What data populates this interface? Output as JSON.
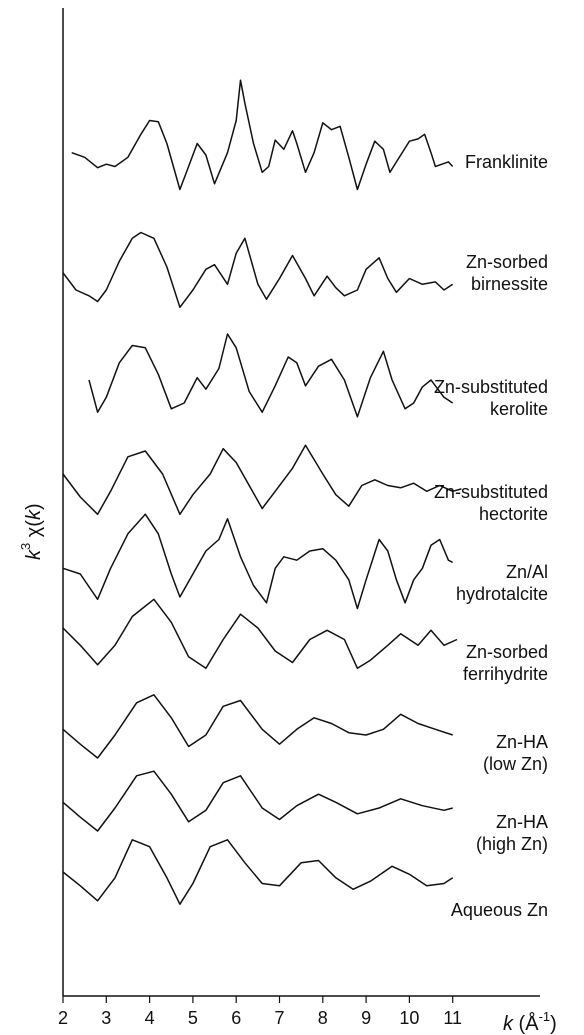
{
  "chart_data": {
    "type": "line",
    "title": "",
    "xlabel_parts": {
      "k": "k",
      "open": " (Å",
      "exp": "-1",
      "close": ")"
    },
    "ylabel_parts": {
      "k": "k",
      "exp": "3",
      "chi": " χ(",
      "kk": "k",
      "close": ")"
    },
    "xlim": [
      2,
      11.5
    ],
    "x_ticks": [
      2,
      3,
      4,
      5,
      6,
      7,
      8,
      9,
      10,
      11
    ],
    "grid": false,
    "legend": "none",
    "series": [
      {
        "name": "Franklinite",
        "label_lines": [
          "Franklinite"
        ],
        "points": [
          [
            2.2,
            0.72
          ],
          [
            2.5,
            0.68
          ],
          [
            2.8,
            0.59
          ],
          [
            3.0,
            0.62
          ],
          [
            3.2,
            0.6
          ],
          [
            3.5,
            0.68
          ],
          [
            3.8,
            0.88
          ],
          [
            4.0,
            1.0
          ],
          [
            4.2,
            0.99
          ],
          [
            4.4,
            0.8
          ],
          [
            4.7,
            0.4
          ],
          [
            4.9,
            0.6
          ],
          [
            5.1,
            0.8
          ],
          [
            5.3,
            0.7
          ],
          [
            5.5,
            0.45
          ],
          [
            5.8,
            0.72
          ],
          [
            6.0,
            1.0
          ],
          [
            6.1,
            1.35
          ],
          [
            6.2,
            1.15
          ],
          [
            6.4,
            0.8
          ],
          [
            6.6,
            0.55
          ],
          [
            6.75,
            0.6
          ],
          [
            6.9,
            0.83
          ],
          [
            7.1,
            0.75
          ],
          [
            7.3,
            0.91
          ],
          [
            7.4,
            0.8
          ],
          [
            7.6,
            0.55
          ],
          [
            7.8,
            0.72
          ],
          [
            8.0,
            0.98
          ],
          [
            8.2,
            0.92
          ],
          [
            8.4,
            0.95
          ],
          [
            8.6,
            0.68
          ],
          [
            8.8,
            0.4
          ],
          [
            9.0,
            0.62
          ],
          [
            9.2,
            0.82
          ],
          [
            9.4,
            0.75
          ],
          [
            9.55,
            0.55
          ],
          [
            9.7,
            0.64
          ],
          [
            9.9,
            0.76
          ],
          [
            10.0,
            0.82
          ],
          [
            10.2,
            0.84
          ],
          [
            10.35,
            0.88
          ],
          [
            10.5,
            0.72
          ],
          [
            10.6,
            0.6
          ],
          [
            10.75,
            0.62
          ],
          [
            10.9,
            0.64
          ],
          [
            11.0,
            0.6
          ]
        ]
      },
      {
        "name": "Zn-sorbed birnessite",
        "label_lines": [
          "Zn-sorbed",
          "birnessite"
        ],
        "points": [
          [
            2.0,
            0.65
          ],
          [
            2.3,
            0.5
          ],
          [
            2.6,
            0.45
          ],
          [
            2.8,
            0.4
          ],
          [
            3.0,
            0.5
          ],
          [
            3.3,
            0.75
          ],
          [
            3.6,
            0.95
          ],
          [
            3.8,
            1.0
          ],
          [
            4.1,
            0.95
          ],
          [
            4.4,
            0.7
          ],
          [
            4.7,
            0.35
          ],
          [
            5.0,
            0.5
          ],
          [
            5.3,
            0.68
          ],
          [
            5.5,
            0.72
          ],
          [
            5.8,
            0.55
          ],
          [
            6.0,
            0.82
          ],
          [
            6.2,
            0.95
          ],
          [
            6.5,
            0.55
          ],
          [
            6.7,
            0.42
          ],
          [
            7.0,
            0.6
          ],
          [
            7.3,
            0.8
          ],
          [
            7.6,
            0.6
          ],
          [
            7.8,
            0.45
          ],
          [
            8.1,
            0.62
          ],
          [
            8.3,
            0.52
          ],
          [
            8.5,
            0.45
          ],
          [
            8.8,
            0.5
          ],
          [
            9.0,
            0.68
          ],
          [
            9.3,
            0.78
          ],
          [
            9.5,
            0.6
          ],
          [
            9.7,
            0.48
          ],
          [
            10.0,
            0.6
          ],
          [
            10.3,
            0.55
          ],
          [
            10.6,
            0.57
          ],
          [
            10.8,
            0.5
          ],
          [
            11.0,
            0.55
          ]
        ]
      },
      {
        "name": "Zn-substituted kerolite",
        "label_lines": [
          "Zn-substituted",
          "kerolite"
        ],
        "points": [
          [
            2.6,
            0.7
          ],
          [
            2.8,
            0.42
          ],
          [
            3.0,
            0.55
          ],
          [
            3.3,
            0.85
          ],
          [
            3.6,
            1.0
          ],
          [
            3.9,
            0.98
          ],
          [
            4.2,
            0.75
          ],
          [
            4.5,
            0.45
          ],
          [
            4.8,
            0.5
          ],
          [
            5.1,
            0.72
          ],
          [
            5.3,
            0.62
          ],
          [
            5.6,
            0.8
          ],
          [
            5.8,
            1.1
          ],
          [
            6.0,
            0.98
          ],
          [
            6.3,
            0.6
          ],
          [
            6.6,
            0.42
          ],
          [
            6.9,
            0.65
          ],
          [
            7.2,
            0.9
          ],
          [
            7.4,
            0.85
          ],
          [
            7.6,
            0.65
          ],
          [
            7.9,
            0.82
          ],
          [
            8.2,
            0.88
          ],
          [
            8.5,
            0.7
          ],
          [
            8.8,
            0.38
          ],
          [
            9.1,
            0.72
          ],
          [
            9.4,
            0.95
          ],
          [
            9.6,
            0.7
          ],
          [
            9.9,
            0.45
          ],
          [
            10.1,
            0.5
          ],
          [
            10.3,
            0.64
          ],
          [
            10.5,
            0.7
          ],
          [
            10.8,
            0.55
          ],
          [
            11.0,
            0.5
          ]
        ]
      },
      {
        "name": "Zn-substituted hectorite",
        "label_lines": [
          "Zn-substituted",
          "hectorite"
        ],
        "points": [
          [
            2.0,
            0.7
          ],
          [
            2.4,
            0.5
          ],
          [
            2.8,
            0.35
          ],
          [
            3.1,
            0.55
          ],
          [
            3.5,
            0.85
          ],
          [
            3.9,
            0.9
          ],
          [
            4.3,
            0.7
          ],
          [
            4.7,
            0.35
          ],
          [
            5.0,
            0.52
          ],
          [
            5.4,
            0.7
          ],
          [
            5.7,
            0.92
          ],
          [
            6.0,
            0.8
          ],
          [
            6.3,
            0.6
          ],
          [
            6.6,
            0.4
          ],
          [
            6.9,
            0.55
          ],
          [
            7.3,
            0.75
          ],
          [
            7.6,
            0.95
          ],
          [
            8.0,
            0.7
          ],
          [
            8.3,
            0.52
          ],
          [
            8.6,
            0.42
          ],
          [
            8.9,
            0.6
          ],
          [
            9.2,
            0.65
          ],
          [
            9.5,
            0.6
          ],
          [
            9.8,
            0.58
          ],
          [
            10.1,
            0.62
          ],
          [
            10.4,
            0.55
          ],
          [
            10.7,
            0.6
          ],
          [
            11.0,
            0.55
          ],
          [
            11.2,
            0.57
          ]
        ]
      },
      {
        "name": "Zn/Al hydrotalcite",
        "label_lines": [
          "Zn/Al",
          "hydrotalcite"
        ],
        "points": [
          [
            2.0,
            0.55
          ],
          [
            2.4,
            0.5
          ],
          [
            2.8,
            0.28
          ],
          [
            3.1,
            0.55
          ],
          [
            3.5,
            0.85
          ],
          [
            3.9,
            1.02
          ],
          [
            4.2,
            0.85
          ],
          [
            4.5,
            0.5
          ],
          [
            4.7,
            0.3
          ],
          [
            5.0,
            0.5
          ],
          [
            5.3,
            0.7
          ],
          [
            5.6,
            0.8
          ],
          [
            5.8,
            0.98
          ],
          [
            6.1,
            0.65
          ],
          [
            6.4,
            0.4
          ],
          [
            6.7,
            0.25
          ],
          [
            6.9,
            0.55
          ],
          [
            7.1,
            0.65
          ],
          [
            7.4,
            0.62
          ],
          [
            7.7,
            0.7
          ],
          [
            8.0,
            0.72
          ],
          [
            8.3,
            0.62
          ],
          [
            8.6,
            0.45
          ],
          [
            8.8,
            0.2
          ],
          [
            9.0,
            0.45
          ],
          [
            9.3,
            0.8
          ],
          [
            9.5,
            0.7
          ],
          [
            9.7,
            0.45
          ],
          [
            9.9,
            0.25
          ],
          [
            10.1,
            0.45
          ],
          [
            10.3,
            0.55
          ],
          [
            10.5,
            0.75
          ],
          [
            10.7,
            0.8
          ],
          [
            10.9,
            0.62
          ],
          [
            11.0,
            0.6
          ]
        ]
      },
      {
        "name": "Zn-sorbed ferrihydrite",
        "label_lines": [
          "Zn-sorbed",
          "ferrihydrite"
        ],
        "points": [
          [
            2.0,
            0.7
          ],
          [
            2.4,
            0.55
          ],
          [
            2.8,
            0.38
          ],
          [
            3.2,
            0.55
          ],
          [
            3.6,
            0.8
          ],
          [
            4.1,
            0.95
          ],
          [
            4.5,
            0.75
          ],
          [
            4.9,
            0.45
          ],
          [
            5.3,
            0.35
          ],
          [
            5.7,
            0.6
          ],
          [
            6.1,
            0.82
          ],
          [
            6.5,
            0.7
          ],
          [
            6.9,
            0.5
          ],
          [
            7.3,
            0.4
          ],
          [
            7.7,
            0.6
          ],
          [
            8.1,
            0.68
          ],
          [
            8.5,
            0.6
          ],
          [
            8.8,
            0.35
          ],
          [
            9.1,
            0.42
          ],
          [
            9.5,
            0.55
          ],
          [
            9.8,
            0.65
          ],
          [
            10.2,
            0.55
          ],
          [
            10.5,
            0.68
          ],
          [
            10.8,
            0.55
          ],
          [
            11.1,
            0.6
          ]
        ]
      },
      {
        "name": "Zn-HA (low Zn)",
        "label_lines": [
          "Zn-HA",
          "(low Zn)"
        ],
        "points": [
          [
            2.0,
            0.55
          ],
          [
            2.4,
            0.42
          ],
          [
            2.8,
            0.3
          ],
          [
            3.2,
            0.5
          ],
          [
            3.7,
            0.78
          ],
          [
            4.1,
            0.85
          ],
          [
            4.5,
            0.65
          ],
          [
            4.9,
            0.4
          ],
          [
            5.3,
            0.5
          ],
          [
            5.7,
            0.75
          ],
          [
            6.1,
            0.8
          ],
          [
            6.6,
            0.55
          ],
          [
            7.0,
            0.42
          ],
          [
            7.4,
            0.55
          ],
          [
            7.8,
            0.65
          ],
          [
            8.2,
            0.6
          ],
          [
            8.6,
            0.52
          ],
          [
            9.0,
            0.5
          ],
          [
            9.4,
            0.55
          ],
          [
            9.8,
            0.68
          ],
          [
            10.2,
            0.6
          ],
          [
            10.6,
            0.55
          ],
          [
            11.0,
            0.5
          ]
        ]
      },
      {
        "name": "Zn-HA (high Zn)",
        "label_lines": [
          "Zn-HA",
          "(high Zn)"
        ],
        "points": [
          [
            2.0,
            0.55
          ],
          [
            2.4,
            0.42
          ],
          [
            2.8,
            0.3
          ],
          [
            3.2,
            0.5
          ],
          [
            3.7,
            0.78
          ],
          [
            4.1,
            0.82
          ],
          [
            4.5,
            0.62
          ],
          [
            4.9,
            0.38
          ],
          [
            5.3,
            0.48
          ],
          [
            5.7,
            0.72
          ],
          [
            6.1,
            0.78
          ],
          [
            6.6,
            0.5
          ],
          [
            7.0,
            0.4
          ],
          [
            7.4,
            0.52
          ],
          [
            7.9,
            0.62
          ],
          [
            8.3,
            0.55
          ],
          [
            8.8,
            0.45
          ],
          [
            9.3,
            0.5
          ],
          [
            9.8,
            0.58
          ],
          [
            10.3,
            0.52
          ],
          [
            10.8,
            0.48
          ],
          [
            11.0,
            0.5
          ]
        ]
      },
      {
        "name": "Aqueous Zn",
        "label_lines": [
          "Aqueous Zn"
        ],
        "points": [
          [
            2.0,
            0.5
          ],
          [
            2.4,
            0.38
          ],
          [
            2.8,
            0.25
          ],
          [
            3.2,
            0.45
          ],
          [
            3.6,
            0.78
          ],
          [
            4.0,
            0.72
          ],
          [
            4.4,
            0.45
          ],
          [
            4.7,
            0.22
          ],
          [
            5.0,
            0.4
          ],
          [
            5.4,
            0.72
          ],
          [
            5.8,
            0.78
          ],
          [
            6.2,
            0.58
          ],
          [
            6.6,
            0.4
          ],
          [
            7.0,
            0.38
          ],
          [
            7.5,
            0.58
          ],
          [
            7.9,
            0.6
          ],
          [
            8.3,
            0.45
          ],
          [
            8.7,
            0.35
          ],
          [
            9.1,
            0.42
          ],
          [
            9.6,
            0.55
          ],
          [
            10.0,
            0.48
          ],
          [
            10.4,
            0.38
          ],
          [
            10.8,
            0.4
          ],
          [
            11.0,
            0.45
          ]
        ]
      }
    ]
  }
}
